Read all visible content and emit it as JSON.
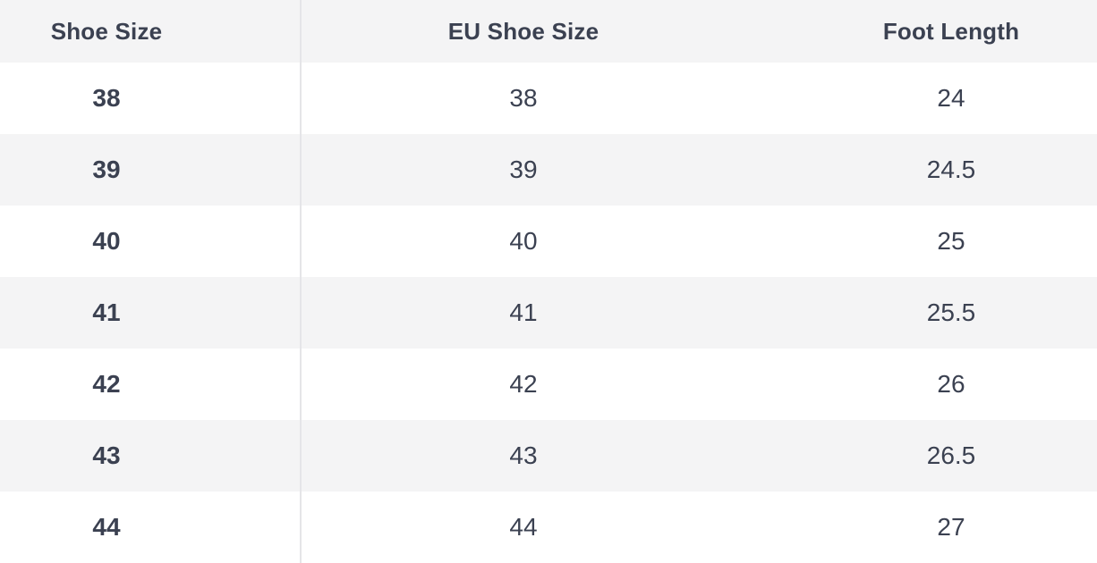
{
  "table": {
    "columns": [
      "Shoe Size",
      "EU Shoe Size",
      "Foot Length"
    ],
    "rows": [
      [
        "38",
        "38",
        "24"
      ],
      [
        "39",
        "39",
        "24.5"
      ],
      [
        "40",
        "40",
        "25"
      ],
      [
        "41",
        "41",
        "25.5"
      ],
      [
        "42",
        "42",
        "26"
      ],
      [
        "43",
        "43",
        "26.5"
      ],
      [
        "44",
        "44",
        "27"
      ]
    ]
  },
  "colors": {
    "header_background": "#f4f4f5",
    "stripe_background": "#f4f4f5",
    "row_background": "#ffffff",
    "divider": "#e5e5e8",
    "text": "#3b4151"
  },
  "chart_data": {
    "type": "table",
    "title": "",
    "columns": [
      "Shoe Size",
      "EU Shoe Size",
      "Foot Length"
    ],
    "rows": [
      [
        38,
        38,
        24
      ],
      [
        39,
        39,
        24.5
      ],
      [
        40,
        40,
        25
      ],
      [
        41,
        41,
        25.5
      ],
      [
        42,
        42,
        26
      ],
      [
        43,
        43,
        26.5
      ],
      [
        44,
        44,
        27
      ]
    ],
    "layout": {
      "striped": true,
      "first_column_bold": true,
      "vertical_divider_after_first_column": true
    }
  }
}
